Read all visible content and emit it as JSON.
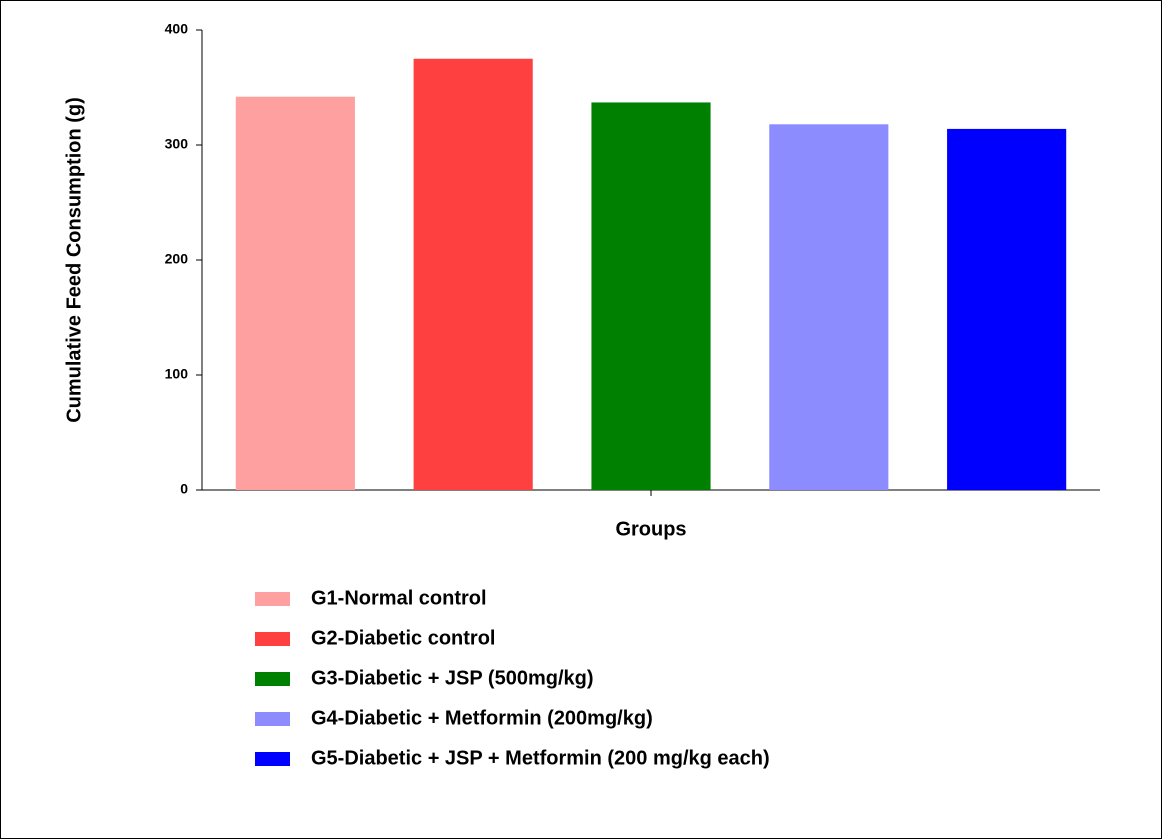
{
  "chart_data": {
    "type": "bar",
    "x_label": "Groups",
    "y_label": "Cumulative Feed Consumption (g)",
    "categories": [
      null
    ],
    "series": [
      {
        "name": "G1-Normal control",
        "color": "#ffa0a0",
        "values": [
          342
        ]
      },
      {
        "name": "G2-Diabetic control",
        "color": "#ff4040",
        "values": [
          375
        ]
      },
      {
        "name": "G3-Diabetic + JSP (500mg/kg)",
        "color": "#008000",
        "values": [
          337
        ]
      },
      {
        "name": "G4-Diabetic + Metformin (200mg/kg)",
        "color": "#8c8cff",
        "values": [
          318
        ]
      },
      {
        "name": "G5-Diabetic + JSP + Metformin (200 mg/kg each)",
        "color": "#0000ff",
        "values": [
          314
        ]
      }
    ],
    "ylim": [
      0,
      400
    ],
    "yticks": [
      0,
      100,
      200,
      300,
      400
    ],
    "grid": false
  }
}
